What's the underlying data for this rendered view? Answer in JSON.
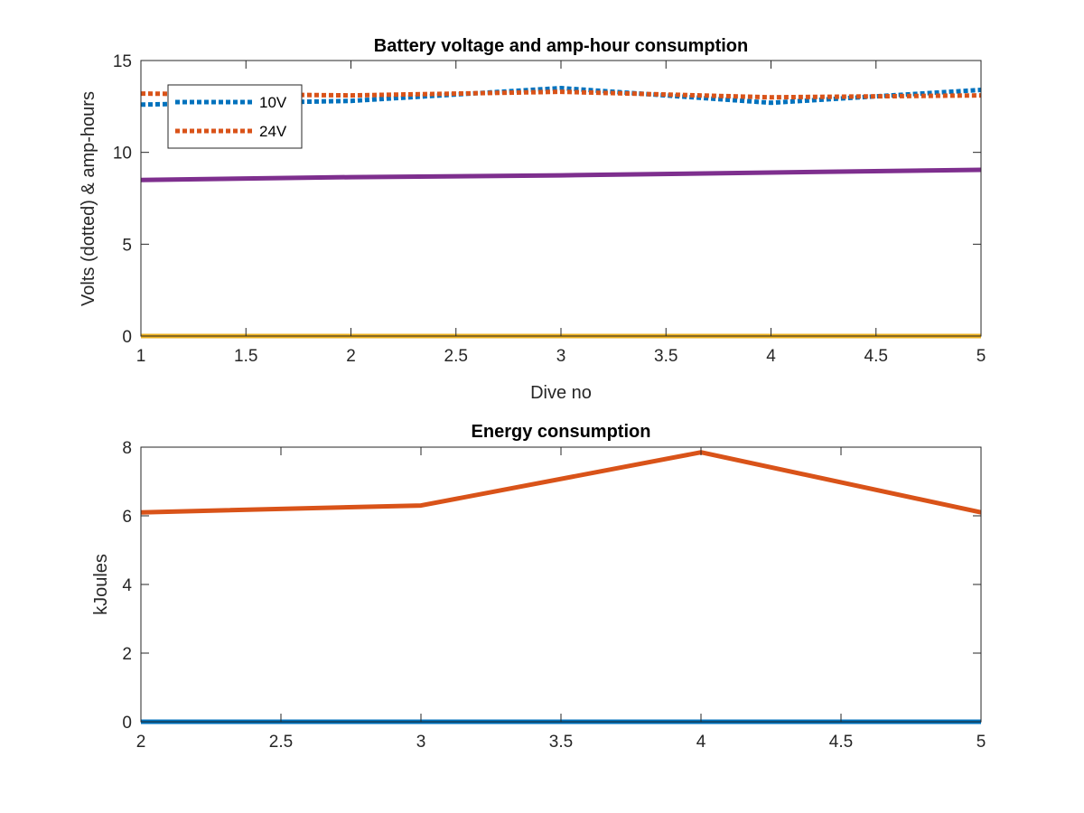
{
  "chart_data": [
    {
      "type": "line",
      "title": "Battery voltage and amp-hour consumption",
      "xlabel": "Dive no",
      "ylabel": "Volts (dotted) & amp-hours",
      "xlim": [
        1,
        5
      ],
      "ylim": [
        0,
        15
      ],
      "xticks": [
        1,
        1.5,
        2,
        2.5,
        3,
        3.5,
        4,
        4.5,
        5
      ],
      "yticks": [
        0,
        5,
        10,
        15
      ],
      "grid": false,
      "legend_position": "top-left",
      "series": [
        {
          "name": "10V",
          "style": "dotted",
          "color": "#0072BD",
          "x": [
            1,
            2,
            3,
            4,
            5
          ],
          "y": [
            12.6,
            12.8,
            13.5,
            12.7,
            13.4
          ]
        },
        {
          "name": "24V",
          "style": "dotted",
          "color": "#D95319",
          "x": [
            1,
            2,
            3,
            4,
            5
          ],
          "y": [
            13.2,
            13.1,
            13.3,
            13.0,
            13.1
          ]
        },
        {
          "style": "solid",
          "color": "#7E2F8E",
          "x": [
            1,
            2,
            3,
            4,
            5
          ],
          "y": [
            8.5,
            8.65,
            8.75,
            8.9,
            9.05
          ]
        },
        {
          "style": "solid",
          "color": "#EDB120",
          "x": [
            1,
            2,
            3,
            4,
            5
          ],
          "y": [
            0,
            0,
            0,
            0,
            0
          ]
        }
      ]
    },
    {
      "type": "line",
      "title": "Energy consumption",
      "xlabel": "",
      "ylabel": "kJoules",
      "xlim": [
        2,
        5
      ],
      "ylim": [
        0,
        8
      ],
      "xticks": [
        2,
        2.5,
        3,
        3.5,
        4,
        4.5,
        5
      ],
      "yticks": [
        0,
        2,
        4,
        6,
        8
      ],
      "grid": false,
      "series": [
        {
          "style": "solid",
          "color": "#0072BD",
          "x": [
            2,
            3,
            4,
            5
          ],
          "y": [
            0,
            0,
            0,
            0
          ]
        },
        {
          "style": "solid",
          "color": "#D95319",
          "x": [
            2,
            3,
            4,
            5
          ],
          "y": [
            6.1,
            6.3,
            7.85,
            6.1
          ]
        }
      ]
    }
  ]
}
